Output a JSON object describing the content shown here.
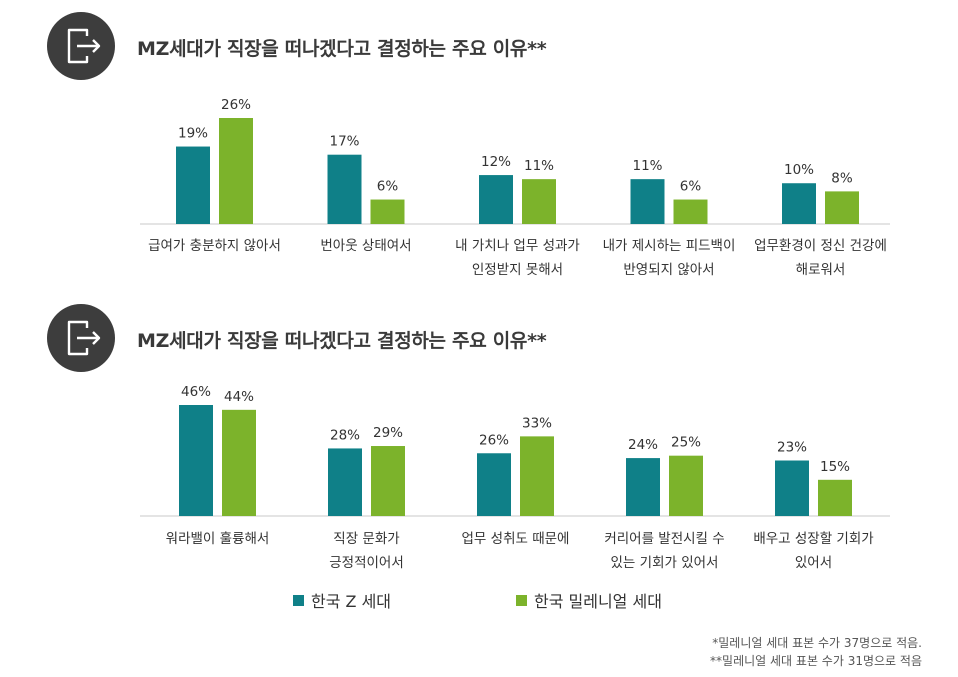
{
  "colors": {
    "z": "#0f8088",
    "millennial": "#7cb32b",
    "icon_bg": "#3d3d3d"
  },
  "icon": "exit-door-arrow-icon",
  "legend": {
    "z_label": "한국 Z 세대",
    "millennial_label": "한국 밀레니얼 세대"
  },
  "footnotes": {
    "line1": "*밀레니얼 세대 표본 수가 37명으로 적음.",
    "line2": "**밀레니얼 세대 표본 수가 31명으로 적음"
  },
  "chart_data": [
    {
      "type": "bar",
      "title": "MZ세대가 직장을 떠나겠다고 결정하는 주요 이유**",
      "unit": "%",
      "categories": [
        [
          "급여가 충분하지 않아서"
        ],
        [
          "번아웃 상태여서"
        ],
        [
          "내 가치나 업무 성과가",
          "인정받지 못해서"
        ],
        [
          "내가 제시하는 피드백이",
          "반영되지 않아서"
        ],
        [
          "업무환경이 정신 건강에",
          "해로워서"
        ]
      ],
      "series": [
        {
          "name": "한국 Z 세대",
          "values": [
            19,
            17,
            12,
            11,
            10
          ]
        },
        {
          "name": "한국 밀레니얼 세대",
          "values": [
            26,
            6,
            11,
            6,
            8
          ]
        }
      ],
      "ylim": [
        0,
        26
      ]
    },
    {
      "type": "bar",
      "title": "MZ세대가 직장을 떠나겠다고 결정하는 주요 이유**",
      "unit": "%",
      "categories": [
        [
          "워라밸이 훌륭해서"
        ],
        [
          "직장 문화가",
          "긍정적이어서"
        ],
        [
          "업무 성취도 때문에"
        ],
        [
          "커리어를 발전시킬 수",
          "있는 기회가 있어서"
        ],
        [
          "배우고 성장할 기회가",
          "있어서"
        ]
      ],
      "series": [
        {
          "name": "한국 Z 세대",
          "values": [
            46,
            28,
            26,
            24,
            23
          ]
        },
        {
          "name": "한국 밀레니얼 세대",
          "values": [
            44,
            29,
            33,
            25,
            15
          ]
        }
      ],
      "ylim": [
        0,
        46
      ]
    }
  ]
}
